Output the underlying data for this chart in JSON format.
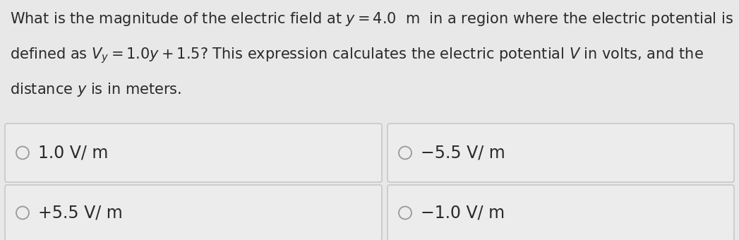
{
  "bg_color": "#e8e8e8",
  "question_lines": [
    "What is the magnitude of the electric field at $y = 4.0$  m  in a region where the electric potential is",
    "defined as $V_y = 1.0y + 1.5$? This expression calculates the electric potential $V$ in volts, and the",
    "distance $y$ is in meters."
  ],
  "choices": [
    {
      "text": "1.0 V/ m",
      "col": 0,
      "row": 0
    },
    {
      "text": "−5.5 V/ m",
      "col": 1,
      "row": 0
    },
    {
      "text": "+5.5 V/ m",
      "col": 0,
      "row": 1
    },
    {
      "text": "−1.0 V/ m",
      "col": 1,
      "row": 1
    }
  ],
  "box_facecolor": "#ececec",
  "box_edgecolor": "#c8c8c8",
  "text_color": "#2a2a2a",
  "font_size_question": 15.0,
  "font_size_choice": 17.0,
  "circle_edge_color": "#999999",
  "circle_face_color": "#ececec"
}
